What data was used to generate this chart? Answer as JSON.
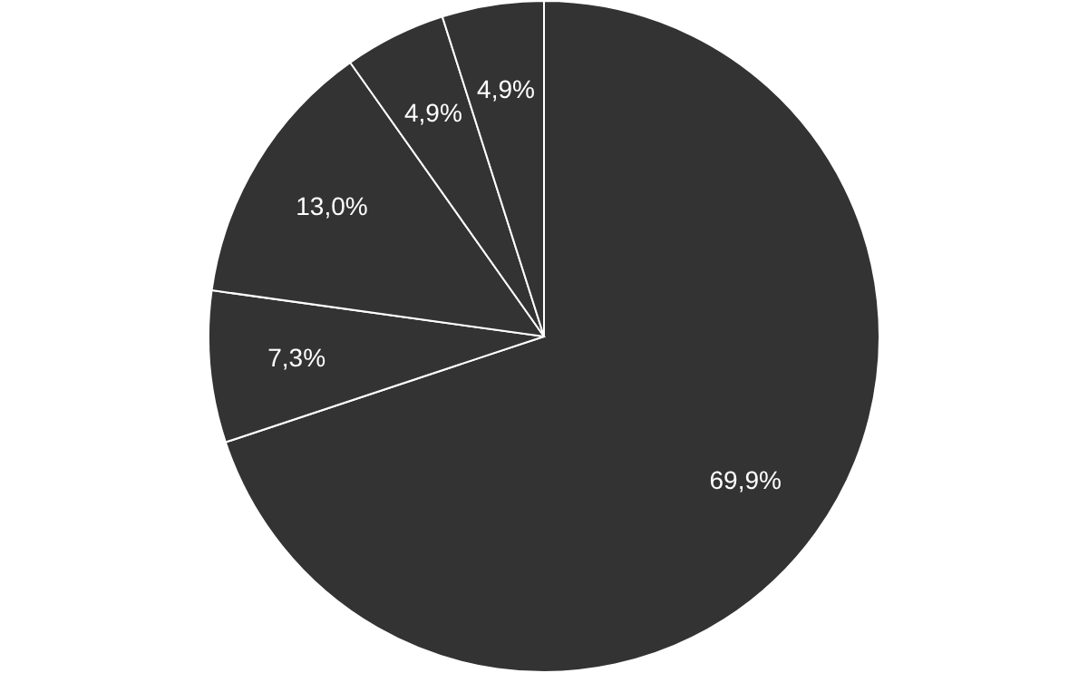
{
  "chart_data": {
    "type": "pie",
    "categories": [
      null,
      null,
      null,
      null,
      null
    ],
    "values": [
      69.9,
      7.3,
      13.0,
      4.9,
      4.9
    ],
    "colors": [
      "#333333",
      "#333333",
      "#333333",
      "#333333",
      "#333333"
    ],
    "value_labels": [
      "69,9%",
      "7,3%",
      "13,0%",
      "4,9%",
      "4,9%"
    ]
  }
}
